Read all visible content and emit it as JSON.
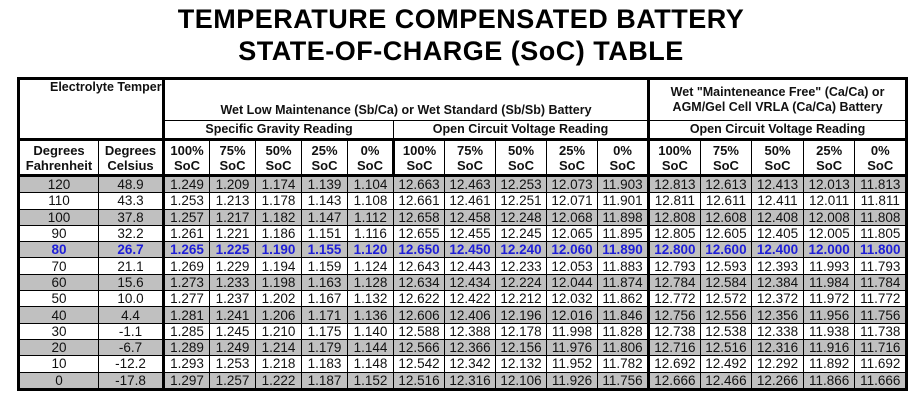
{
  "title_line1": "TEMPERATURE COMPENSATED BATTERY",
  "title_line2": "STATE-OF-CHARGE (SoC) TABLE",
  "header": {
    "temp_group": "Electrolyte Temperature",
    "wet_group": "Wet Low Maintenance (Sb/Ca) or Wet Standard (Sb/Sb) Battery",
    "mf_group_line1": "Wet \"Mainteneance Free\" (Ca/Ca) or",
    "mf_group_line2": "AGM/Gel Cell VRLA (Ca/Ca) Battery",
    "sg_reading": "Specific Gravity Reading",
    "ocv_reading": "Open Circuit Voltage Reading",
    "ocv_reading_2": "Open Circuit Voltage Reading",
    "col_f_1": "Degrees",
    "col_f_2": "Fahrenheit",
    "col_c_1": "Degrees",
    "col_c_2": "Celsius",
    "soc_levels": [
      "100%",
      "75%",
      "50%",
      "25%",
      "0%"
    ],
    "soc_suffix": "SoC"
  },
  "highlight_color": "#1f1fd8",
  "rows": [
    [
      "120",
      "48.9",
      "1.249",
      "1.209",
      "1.174",
      "1.139",
      "1.104",
      "12.663",
      "12.463",
      "12.253",
      "12.073",
      "11.903",
      "12.813",
      "12.613",
      "12.413",
      "12.013",
      "11.813"
    ],
    [
      "110",
      "43.3",
      "1.253",
      "1.213",
      "1.178",
      "1.143",
      "1.108",
      "12.661",
      "12.461",
      "12.251",
      "12.071",
      "11.901",
      "12.811",
      "12.611",
      "12.411",
      "12.011",
      "11.811"
    ],
    [
      "100",
      "37.8",
      "1.257",
      "1.217",
      "1.182",
      "1.147",
      "1.112",
      "12.658",
      "12.458",
      "12.248",
      "12.068",
      "11.898",
      "12.808",
      "12.608",
      "12.408",
      "12.008",
      "11.808"
    ],
    [
      "90",
      "32.2",
      "1.261",
      "1.221",
      "1.186",
      "1.151",
      "1.116",
      "12.655",
      "12.455",
      "12.245",
      "12.065",
      "11.895",
      "12.805",
      "12.605",
      "12.405",
      "12.005",
      "11.805"
    ],
    [
      "80",
      "26.7",
      "1.265",
      "1.225",
      "1.190",
      "1.155",
      "1.120",
      "12.650",
      "12.450",
      "12.240",
      "12.060",
      "11.890",
      "12.800",
      "12.600",
      "12.400",
      "12.000",
      "11.800"
    ],
    [
      "70",
      "21.1",
      "1.269",
      "1.229",
      "1.194",
      "1.159",
      "1.124",
      "12.643",
      "12.443",
      "12.233",
      "12.053",
      "11.883",
      "12.793",
      "12.593",
      "12.393",
      "11.993",
      "11.793"
    ],
    [
      "60",
      "15.6",
      "1.273",
      "1.233",
      "1.198",
      "1.163",
      "1.128",
      "12.634",
      "12.434",
      "12.224",
      "12.044",
      "11.874",
      "12.784",
      "12.584",
      "12.384",
      "11.984",
      "11.784"
    ],
    [
      "50",
      "10.0",
      "1.277",
      "1.237",
      "1.202",
      "1.167",
      "1.132",
      "12.622",
      "12.422",
      "12.212",
      "12.032",
      "11.862",
      "12.772",
      "12.572",
      "12.372",
      "11.972",
      "11.772"
    ],
    [
      "40",
      "4.4",
      "1.281",
      "1.241",
      "1.206",
      "1.171",
      "1.136",
      "12.606",
      "12.406",
      "12.196",
      "12.016",
      "11.846",
      "12.756",
      "12.556",
      "12.356",
      "11.956",
      "11.756"
    ],
    [
      "30",
      "-1.1",
      "1.285",
      "1.245",
      "1.210",
      "1.175",
      "1.140",
      "12.588",
      "12.388",
      "12.178",
      "11.998",
      "11.828",
      "12.738",
      "12.538",
      "12.338",
      "11.938",
      "11.738"
    ],
    [
      "20",
      "-6.7",
      "1.289",
      "1.249",
      "1.214",
      "1.179",
      "1.144",
      "12.566",
      "12.366",
      "12.156",
      "11.976",
      "11.806",
      "12.716",
      "12.516",
      "12.316",
      "11.916",
      "11.716"
    ],
    [
      "10",
      "-12.2",
      "1.293",
      "1.253",
      "1.218",
      "1.183",
      "1.148",
      "12.542",
      "12.342",
      "12.132",
      "11.952",
      "11.782",
      "12.692",
      "12.492",
      "12.292",
      "11.892",
      "11.692"
    ],
    [
      "0",
      "-17.8",
      "1.297",
      "1.257",
      "1.222",
      "1.187",
      "1.152",
      "12.516",
      "12.316",
      "12.106",
      "11.926",
      "11.756",
      "12.666",
      "12.466",
      "12.266",
      "11.866",
      "11.666"
    ]
  ]
}
